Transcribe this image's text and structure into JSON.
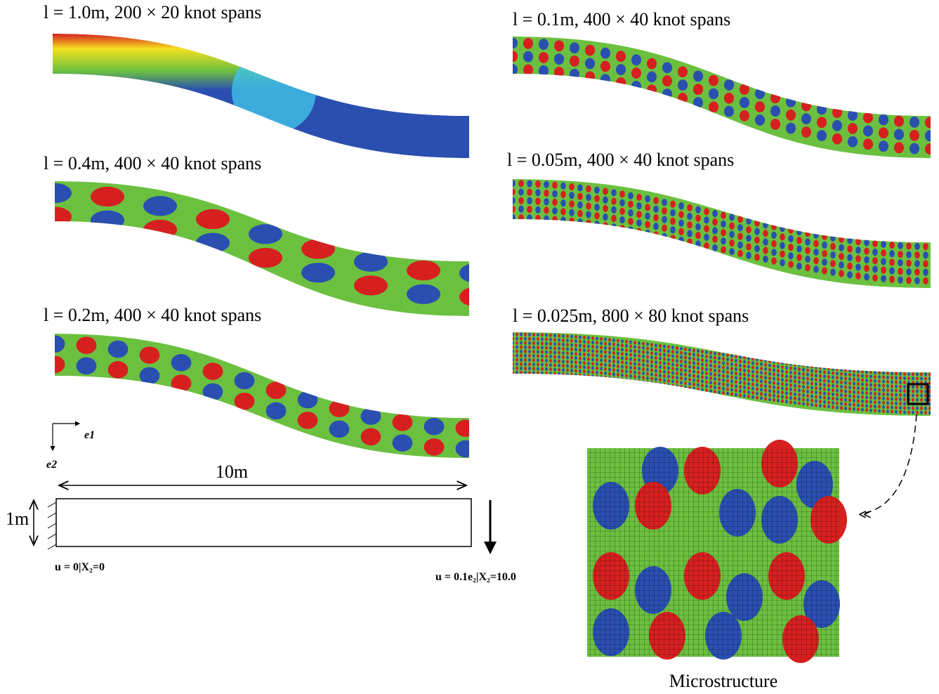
{
  "panels": [
    {
      "label": "l = 1.0m, 200 × 20 knot spans"
    },
    {
      "label": "l = 0.4m, 400 × 40 knot spans"
    },
    {
      "label": "l = 0.2m, 400 × 40 knot spans"
    },
    {
      "label": "l = 0.1m, 400 × 40 knot spans"
    },
    {
      "label": "l = 0.05m, 400 × 40 knot spans"
    },
    {
      "label": "l = 0.025m, 800 × 80 knot spans"
    }
  ],
  "axes": {
    "e1": "e1",
    "e2": "e2"
  },
  "dimensions": {
    "length": "10m",
    "height": "1m"
  },
  "boundary_conditions": {
    "left": "u = 0|X₂=0",
    "right": "u = 0.1e₂|X₂=10.0"
  },
  "inset": {
    "label": "Microstructure"
  }
}
